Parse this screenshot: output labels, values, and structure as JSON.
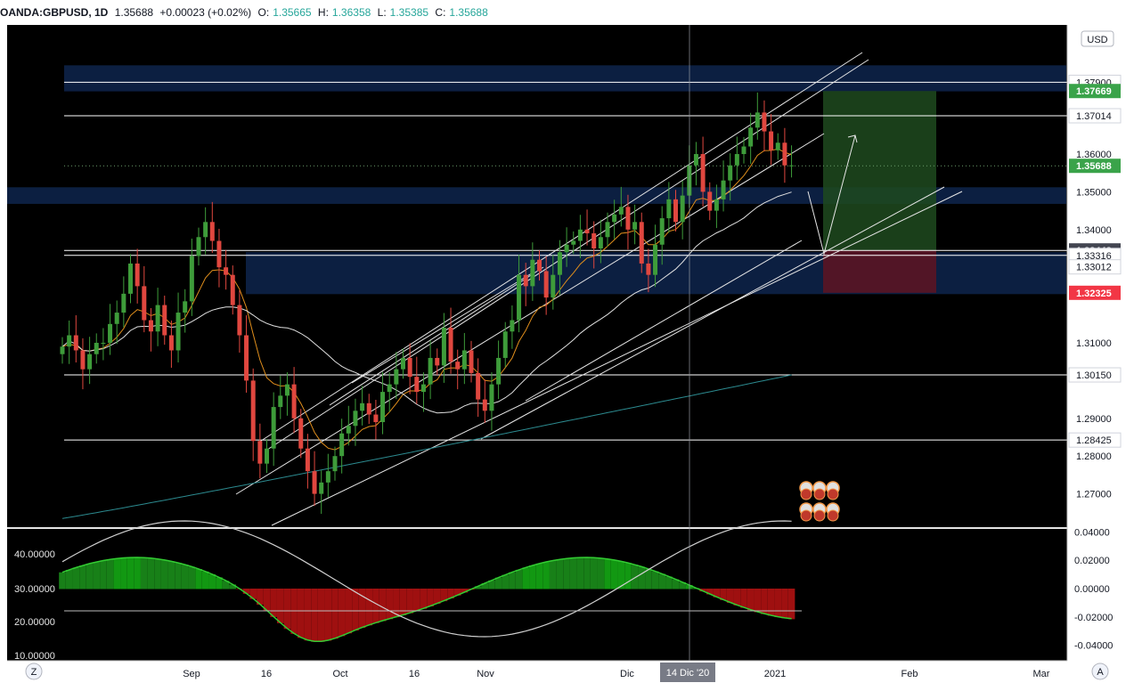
{
  "header": {
    "symbol": "OANDA:GBPUSD, 1D",
    "last": "1.35688",
    "change": "+0.00023 (+0.02%)",
    "open_label": "O:",
    "open": "1.35665",
    "high_label": "H:",
    "high": "1.36358",
    "low_label": "L:",
    "low": "1.35385",
    "close_label": "C:",
    "close": "1.35688"
  },
  "currency": "USD",
  "crosshair_date": "14 Dic '20",
  "buttons": {
    "left": "Z",
    "right": "A"
  },
  "colors": {
    "up": "#3e9c3a",
    "down": "#e0473f",
    "zone": "#0d2144",
    "ema_fast": "#e08e1c",
    "ma_slow": "#e0e0e0",
    "ma_long": "#2c8a8f",
    "target": "#1f4a1f",
    "stop": "#5a1424"
  },
  "chart_data": [
    {
      "type": "candlestick",
      "y_unit": "GBPUSD price",
      "y_range": [
        1.264,
        1.388
      ],
      "x_axis_labels": [
        "Sep",
        "16",
        "Oct",
        "16",
        "Nov",
        "Dic",
        "2021",
        "Feb",
        "Mar"
      ],
      "y_ticks": [
        "1.27000",
        "1.28000",
        "1.29000",
        "1.31000",
        "1.34000",
        "1.35000",
        "1.36000"
      ],
      "price_labels": [
        {
          "text": "1.37900",
          "value": 1.379,
          "style": "line"
        },
        {
          "text": "1.37669",
          "value": 1.37669,
          "style": "green"
        },
        {
          "text": "1.37014",
          "value": 1.37014,
          "style": "line"
        },
        {
          "text": "1.35688",
          "value": 1.35688,
          "style": "green"
        },
        {
          "text": "1.33448",
          "value": 1.33448,
          "style": "grey"
        },
        {
          "text": "1.33316",
          "value": 1.33316,
          "style": "line"
        },
        {
          "text": "1.33012",
          "value": 1.33012,
          "style": "line"
        },
        {
          "text": "1.32325",
          "value": 1.32325,
          "style": "red"
        },
        {
          "text": "1.30150",
          "value": 1.3015,
          "style": "line"
        },
        {
          "text": "1.28425",
          "value": 1.28425,
          "style": "line"
        }
      ],
      "horizontal_levels": [
        1.379,
        1.37014,
        1.33448,
        1.33316,
        1.3015,
        1.28425
      ],
      "zones": [
        [
          1.3766,
          1.3835
        ],
        [
          1.3468,
          1.3512
        ],
        [
          1.3229,
          1.334
        ]
      ],
      "trade": {
        "entry": 1.33448,
        "target": 1.37669,
        "stop": 1.32325
      },
      "closes": [
        1.309,
        1.312,
        1.308,
        1.303,
        1.307,
        1.31,
        1.31,
        1.315,
        1.318,
        1.323,
        1.331,
        1.325,
        1.316,
        1.313,
        1.32,
        1.312,
        1.308,
        1.318,
        1.321,
        1.333,
        1.338,
        1.342,
        1.337,
        1.33,
        1.328,
        1.32,
        1.312,
        1.3,
        1.284,
        1.278,
        1.282,
        1.293,
        1.296,
        1.299,
        1.29,
        1.282,
        1.276,
        1.27,
        1.273,
        1.276,
        1.28,
        1.286,
        1.288,
        1.292,
        1.294,
        1.291,
        1.289,
        1.297,
        1.299,
        1.303,
        1.306,
        1.301,
        1.297,
        1.299,
        1.306,
        1.304,
        1.314,
        1.305,
        1.303,
        1.308,
        1.302,
        1.295,
        1.292,
        1.299,
        1.306,
        1.313,
        1.316,
        1.328,
        1.325,
        1.332,
        1.329,
        1.322,
        1.328,
        1.334,
        1.336,
        1.337,
        1.34,
        1.339,
        1.335,
        1.338,
        1.342,
        1.344,
        1.346,
        1.34,
        1.342,
        1.331,
        1.328,
        1.336,
        1.343,
        1.348,
        1.342,
        1.349,
        1.357,
        1.36,
        1.35,
        1.345,
        1.348,
        1.353,
        1.357,
        1.36,
        1.362,
        1.367,
        1.371,
        1.366,
        1.361,
        1.363,
        1.357,
        1.357
      ]
    },
    {
      "type": "area",
      "y_unit": "oscillator",
      "y_range": [
        -0.05,
        0.04
      ],
      "y_ticks_right": [
        "0.04000",
        "0.02000",
        "0.00000",
        "-0.02000",
        "-0.04000"
      ],
      "y_ticks_left": [
        "40.00000",
        "30.00000",
        "20.00000",
        "10.00000"
      ]
    }
  ]
}
